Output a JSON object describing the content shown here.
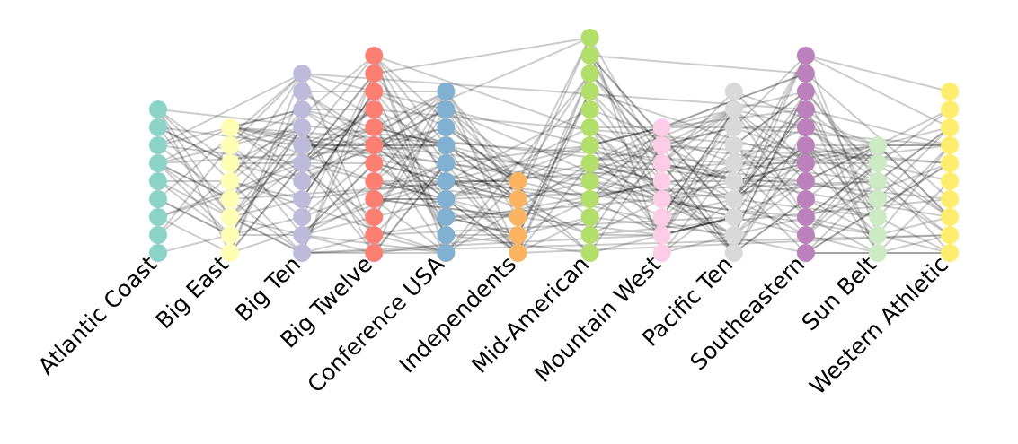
{
  "diagram": {
    "type": "multipartite-network",
    "colors": {
      "edge": "#000000",
      "groups": [
        "#8dd3c7",
        "#ffffb3",
        "#bebada",
        "#fb8072",
        "#80b1d3",
        "#fdb462",
        "#b3de69",
        "#fccde5",
        "#d9d9d9",
        "#bc80bd",
        "#ccebc5",
        "#ffed6f"
      ]
    },
    "groups": [
      {
        "label": "Atlantic Coast",
        "node_count": 9
      },
      {
        "label": "Big East",
        "node_count": 8
      },
      {
        "label": "Big Ten",
        "node_count": 11
      },
      {
        "label": "Big Twelve",
        "node_count": 12
      },
      {
        "label": "Conference USA",
        "node_count": 10
      },
      {
        "label": "Independents",
        "node_count": 5
      },
      {
        "label": "Mid-American",
        "node_count": 13
      },
      {
        "label": "Mountain West",
        "node_count": 8
      },
      {
        "label": "Pacific Ten",
        "node_count": 10
      },
      {
        "label": "Southeastern",
        "node_count": 12
      },
      {
        "label": "Sun Belt",
        "node_count": 7
      },
      {
        "label": "Western Athletic",
        "node_count": 10
      }
    ]
  }
}
